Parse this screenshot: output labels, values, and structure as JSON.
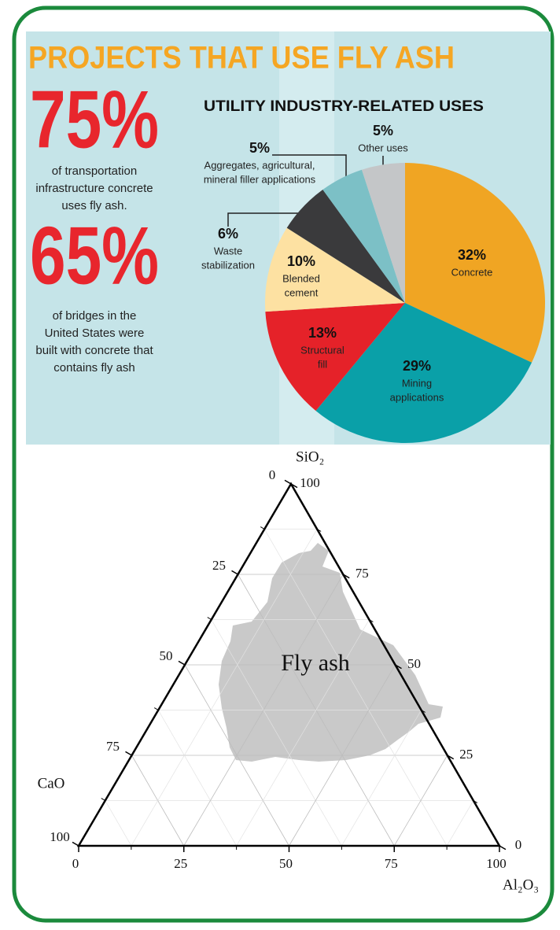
{
  "header": {
    "title": "PROJECTS THAT USE FLY ASH"
  },
  "stats": [
    {
      "figure": "75%",
      "text": [
        "of transportation",
        "infrastructure concrete",
        "uses fly ash."
      ]
    },
    {
      "figure": "65%",
      "text": [
        "of bridges in the",
        "United States were",
        "built with concrete that",
        "contains fly ash"
      ]
    }
  ],
  "chart_data": [
    {
      "type": "pie",
      "title": "UTILITY INDUSTRY-RELATED USES",
      "categories": [
        [
          "Concrete"
        ],
        [
          "Mining",
          "applications"
        ],
        [
          "Structural",
          "fill"
        ],
        [
          "Blended",
          "cement"
        ],
        [
          "Waste",
          "stabilization"
        ],
        [
          "Aggregates, agricultural,",
          "mineral filler applications"
        ],
        [
          "Other uses"
        ]
      ],
      "values": [
        32,
        29,
        13,
        10,
        6,
        5,
        5
      ],
      "value_labels": [
        "32%",
        "29%",
        "13%",
        "10%",
        "6%",
        "5%",
        "5%"
      ],
      "colors": [
        "#f0a523",
        "#0aa0a8",
        "#e52229",
        "#fde1a2",
        "#3a3a3c",
        "#7cc0c6",
        "#c4c6c8"
      ]
    },
    {
      "type": "ternary",
      "axes": [
        {
          "name": "SiO₂",
          "ticks": [
            0,
            25,
            50,
            75,
            100
          ]
        },
        {
          "name": "CaO",
          "ticks": [
            0,
            25,
            50,
            75,
            100
          ]
        },
        {
          "name": "Al₂O₃",
          "ticks": [
            0,
            25,
            50,
            75,
            100
          ]
        }
      ],
      "annotation": "Fly ash"
    }
  ]
}
